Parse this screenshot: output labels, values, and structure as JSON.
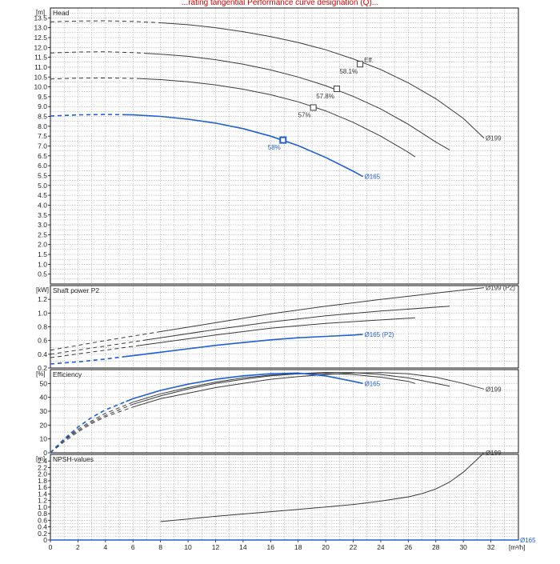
{
  "page": {
    "title": "...rating tangential Performance curve designation (Q)...",
    "title_color": "#d60000"
  },
  "colors": {
    "grey": "#3a3a3a",
    "blue": "#1f5fd6",
    "grid": "#9a9a9a"
  },
  "chart_data": [
    {
      "type": "line",
      "id": "head",
      "title": "Head",
      "ylabel": "[m]",
      "xlabel": "[m³/h]",
      "xlim": [
        0,
        34
      ],
      "ylim": [
        0,
        14
      ],
      "yticks": [
        0.5,
        1.0,
        1.5,
        2.0,
        2.5,
        3.0,
        3.5,
        4.0,
        4.5,
        5.0,
        5.5,
        6.0,
        6.5,
        7.0,
        7.5,
        8.0,
        8.5,
        9.0,
        9.5,
        10.0,
        10.5,
        11.0,
        11.5,
        12.0,
        12.5,
        13.0,
        13.5
      ],
      "ytick_labels": [
        "0.5",
        "1.0",
        "1.5",
        "2.0",
        "2.5",
        "3.0",
        "3.5",
        "4.0",
        "4.5",
        "5.0",
        "5.5",
        "6.0",
        "6.5",
        "7.0",
        "7.5",
        "8.0",
        "8.5",
        "9.0",
        "9.5",
        "10.0",
        "10.5",
        "11.0",
        "11.5",
        "12.0",
        "12.5",
        "13.0",
        "13.5"
      ],
      "grid": true,
      "series": [
        {
          "name": "Ø199",
          "color": "grey",
          "x": [
            0,
            2,
            4,
            6,
            8,
            10,
            12,
            14,
            16,
            18,
            20,
            22,
            24,
            26,
            28,
            30,
            31.5
          ],
          "y": [
            13.3,
            13.34,
            13.35,
            13.32,
            13.25,
            13.15,
            13.0,
            12.8,
            12.55,
            12.25,
            11.88,
            11.42,
            10.88,
            10.2,
            9.4,
            8.4,
            7.4
          ],
          "dashed_until": 8
        },
        {
          "name": "",
          "color": "grey",
          "x": [
            0,
            2,
            4,
            6,
            8,
            10,
            12,
            14,
            16,
            18,
            20,
            22,
            24,
            26,
            28,
            29
          ],
          "y": [
            11.72,
            11.77,
            11.78,
            11.74,
            11.66,
            11.55,
            11.38,
            11.15,
            10.86,
            10.5,
            10.06,
            9.52,
            8.88,
            8.1,
            7.2,
            6.8
          ],
          "dashed_until": 7
        },
        {
          "name": "",
          "color": "grey",
          "x": [
            0,
            2,
            4,
            6,
            8,
            10,
            12,
            14,
            16,
            18,
            20,
            22,
            24,
            26,
            26.5
          ],
          "y": [
            10.4,
            10.44,
            10.45,
            10.43,
            10.37,
            10.26,
            10.1,
            9.88,
            9.6,
            9.24,
            8.78,
            8.2,
            7.5,
            6.68,
            6.45
          ],
          "dashed_until": 6.5
        },
        {
          "name": "Ø165",
          "color": "blue",
          "x": [
            0,
            2,
            4,
            6,
            8,
            10,
            12,
            14,
            16,
            18,
            20,
            22,
            22.7
          ],
          "y": [
            8.52,
            8.58,
            8.6,
            8.58,
            8.5,
            8.36,
            8.16,
            7.88,
            7.5,
            7.02,
            6.42,
            5.72,
            5.45
          ],
          "dashed_until": 5.5
        }
      ],
      "efficiency_markers": [
        {
          "label": "58.1%",
          "x": 22.5,
          "y": 11.15,
          "color": "grey",
          "extra": "Eff."
        },
        {
          "label": "57.8%",
          "x": 20.8,
          "y": 9.9,
          "color": "grey",
          "extra": ""
        },
        {
          "label": "57%",
          "x": 19.1,
          "y": 8.95,
          "color": "grey",
          "extra": ""
        },
        {
          "label": "58%",
          "x": 16.9,
          "y": 7.3,
          "color": "blue",
          "extra": ""
        }
      ]
    },
    {
      "type": "line",
      "id": "power",
      "title": "Shaft power P2",
      "ylabel": "[kW]",
      "ylim": [
        0.2,
        1.4
      ],
      "yticks": [
        0.2,
        0.4,
        0.6,
        0.8,
        1.0,
        1.2
      ],
      "ytick_labels": [
        "0.2",
        "0.4",
        "0.6",
        "0.8",
        "1.0",
        "1.2"
      ],
      "grid": true,
      "series": [
        {
          "name": "Ø199 (P2)",
          "color": "grey",
          "x": [
            0,
            4,
            8,
            12,
            16,
            20,
            24,
            28,
            31.5
          ],
          "y": [
            0.46,
            0.6,
            0.73,
            0.86,
            0.99,
            1.1,
            1.2,
            1.29,
            1.37
          ],
          "dashed_until": 8
        },
        {
          "name": "",
          "color": "grey",
          "x": [
            0,
            4,
            8,
            12,
            16,
            20,
            24,
            29
          ],
          "y": [
            0.4,
            0.52,
            0.64,
            0.76,
            0.87,
            0.96,
            1.03,
            1.1
          ],
          "dashed_until": 7
        },
        {
          "name": "",
          "color": "grey",
          "x": [
            0,
            4,
            8,
            12,
            16,
            20,
            24,
            26.5
          ],
          "y": [
            0.35,
            0.46,
            0.57,
            0.68,
            0.78,
            0.85,
            0.9,
            0.93
          ],
          "dashed_until": 6.5
        },
        {
          "name": "Ø165 (P2)",
          "color": "blue",
          "x": [
            0,
            2,
            4,
            6,
            8,
            10,
            12,
            14,
            16,
            18,
            20,
            22,
            22.7
          ],
          "y": [
            0.26,
            0.29,
            0.33,
            0.38,
            0.43,
            0.48,
            0.53,
            0.57,
            0.61,
            0.64,
            0.66,
            0.68,
            0.69
          ],
          "dashed_until": 5.5
        }
      ]
    },
    {
      "type": "line",
      "id": "efficiency",
      "title": "Efficiency",
      "ylabel": "[%]",
      "ylim": [
        0,
        60
      ],
      "yticks": [
        0,
        10,
        20,
        30,
        40,
        50
      ],
      "ytick_labels": [
        "0",
        "10",
        "20",
        "30",
        "40",
        "50"
      ],
      "grid": true,
      "series": [
        {
          "name": "Ø199",
          "color": "grey",
          "x": [
            0,
            1,
            2,
            3,
            4,
            6,
            8,
            10,
            12,
            14,
            16,
            18,
            20,
            22,
            24,
            26,
            28,
            30,
            31.5
          ],
          "y": [
            0,
            8,
            15,
            21,
            26,
            33,
            39,
            43,
            47,
            50,
            53,
            55,
            56.5,
            57.5,
            57.8,
            57,
            54.5,
            50,
            46
          ],
          "dashed_until": 6
        },
        {
          "name": "",
          "color": "grey",
          "x": [
            0,
            1,
            2,
            3,
            4,
            6,
            8,
            10,
            12,
            14,
            16,
            18,
            20,
            22,
            24,
            26,
            28,
            29
          ],
          "y": [
            0,
            9,
            16,
            22,
            27,
            35,
            41,
            46,
            50,
            53,
            55.5,
            57,
            58,
            57.8,
            56.5,
            54,
            50,
            48
          ],
          "dashed_until": 6
        },
        {
          "name": "",
          "color": "grey",
          "x": [
            0,
            1,
            2,
            3,
            4,
            6,
            8,
            10,
            12,
            14,
            16,
            18,
            20,
            22,
            24,
            26,
            26.5
          ],
          "y": [
            0,
            9.5,
            17,
            23,
            28.5,
            36.5,
            42.5,
            47,
            51,
            54,
            56,
            57,
            57.2,
            56.5,
            54.5,
            51.5,
            50
          ],
          "dashed_until": 6
        },
        {
          "name": "Ø165",
          "color": "blue",
          "x": [
            0,
            1,
            2,
            3,
            4,
            6,
            8,
            10,
            12,
            14,
            16,
            18,
            20,
            22,
            22.7
          ],
          "y": [
            0,
            10,
            18.5,
            25.5,
            31,
            39,
            45,
            49.5,
            53,
            55.5,
            57,
            57.5,
            55.5,
            51.5,
            50
          ],
          "dashed_until": 5.5
        }
      ]
    },
    {
      "type": "line",
      "id": "npsh",
      "title": "NPSH-values",
      "ylabel": "[m]",
      "xlabel": "[m³/h]",
      "xlim": [
        0,
        34
      ],
      "ylim": [
        0,
        2.6
      ],
      "yticks": [
        0,
        0.2,
        0.4,
        0.6,
        0.8,
        1.0,
        1.2,
        1.4,
        1.6,
        1.8,
        2.0,
        2.2,
        2.4
      ],
      "ytick_labels": [
        "0",
        "0.2",
        "0.4",
        "0.6",
        "0.8",
        "1.0",
        "1.2",
        "1.4",
        "1.6",
        "1.8",
        "2.0",
        "2.2",
        "2.4"
      ],
      "xticks": [
        0,
        2,
        4,
        6,
        8,
        10,
        12,
        14,
        16,
        18,
        20,
        22,
        24,
        26,
        28,
        30,
        32
      ],
      "xtick_labels": [
        "0",
        "2",
        "4",
        "6",
        "8",
        "10",
        "12",
        "14",
        "16",
        "18",
        "20",
        "22",
        "24",
        "26",
        "28",
        "30",
        "32"
      ],
      "grid": true,
      "series": [
        {
          "name": "Ø199",
          "color": "grey",
          "x": [
            8,
            10,
            12,
            14,
            16,
            18,
            20,
            22,
            24,
            26,
            27,
            28,
            29,
            30,
            31,
            31.5
          ],
          "y": [
            0.56,
            0.64,
            0.72,
            0.79,
            0.86,
            0.93,
            1.0,
            1.08,
            1.18,
            1.31,
            1.41,
            1.55,
            1.76,
            2.06,
            2.45,
            2.65
          ],
          "dashed_until": null
        },
        {
          "name": "Ø165",
          "color": "blue",
          "x": [
            0,
            34
          ],
          "y": [
            0,
            0
          ],
          "dashed_until": null
        }
      ]
    }
  ]
}
